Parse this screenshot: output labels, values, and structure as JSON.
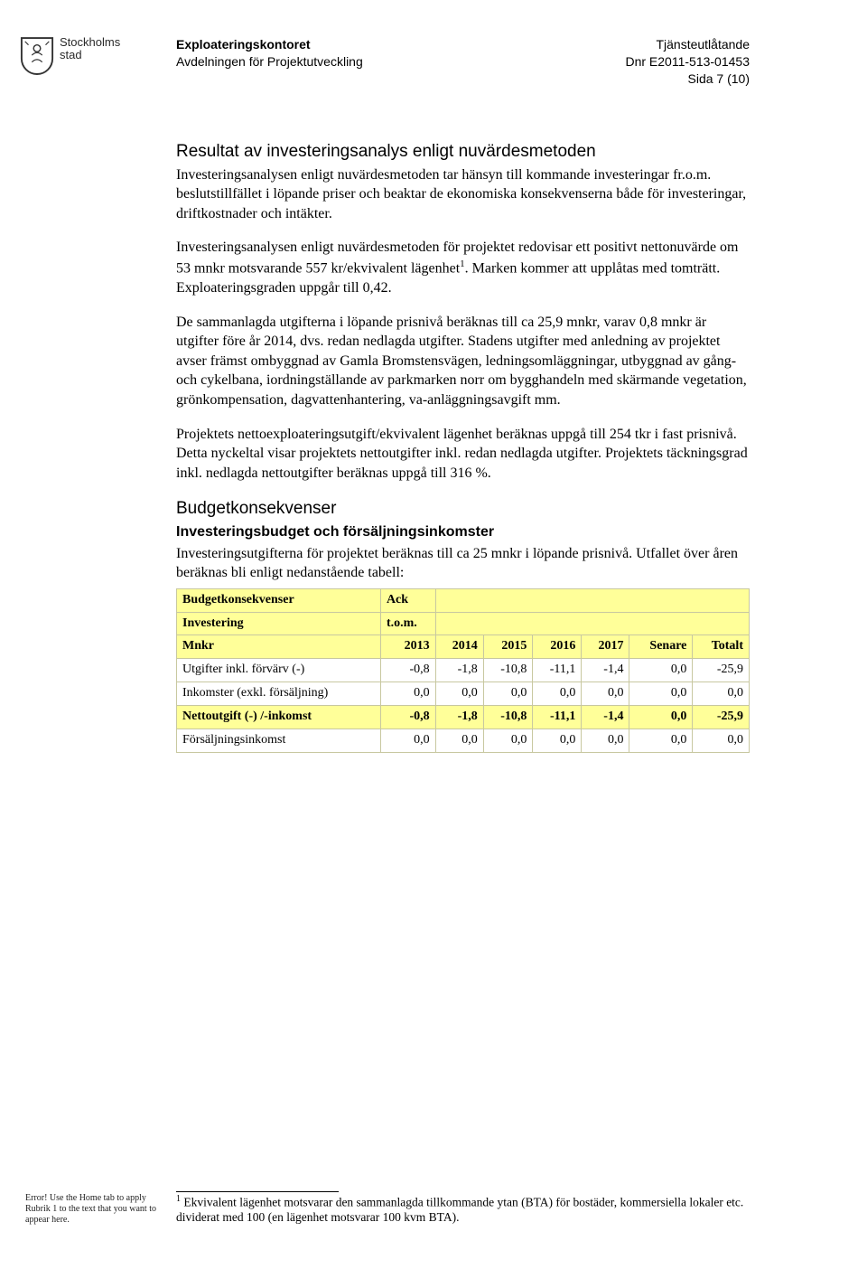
{
  "header": {
    "org": "Exploateringskontoret",
    "dept": "Avdelningen för Projektutveckling",
    "doc_type": "Tjänsteutlåtande",
    "dnr": "Dnr E2011-513-01453",
    "page": "Sida 7 (10)",
    "city_line1": "Stockholms",
    "city_line2": "stad"
  },
  "section1": {
    "title": "Resultat av investeringsanalys enligt nuvärdesmetoden",
    "p1": "Investeringsanalysen enligt nuvärdesmetoden tar hänsyn till kommande investeringar fr.o.m. beslutstillfället i löpande priser och beaktar de ekonomiska konsekvenserna både för investeringar, driftkostnader och intäkter.",
    "p2a": "Investeringsanalysen enligt nuvärdesmetoden för projektet redovisar ett positivt nettonuvärde om 53 mnkr motsvarande 557 kr/ekvivalent lägenhet",
    "p2b": ". Marken kommer att upplåtas med tomträtt. Exploateringsgraden uppgår till 0,42.",
    "p3": "De sammanlagda utgifterna i löpande prisnivå beräknas till ca 25,9 mnkr, varav 0,8 mnkr är utgifter före år 2014, dvs. redan nedlagda utgifter. Stadens utgifter med anledning av projektet avser främst ombyggnad av Gamla Bromstensvägen, ledningsomläggningar, utbyggnad av gång- och cykelbana, iordningställande av parkmarken norr om bygghandeln med skärmande vegetation, grönkompensation, dagvattenhantering, va-anläggningsavgift mm.",
    "p4": "Projektets nettoexploateringsutgift/ekvivalent lägenhet beräknas uppgå till 254 tkr i fast prisnivå. Detta nyckeltal visar projektets nettoutgifter inkl. redan nedlagda utgifter. Projektets täckningsgrad inkl. nedlagda nettoutgifter beräknas uppgå till 316 %."
  },
  "section2": {
    "title": "Budgetkonsekvenser",
    "subtitle": "Investeringsbudget och försäljningsinkomster",
    "p1": "Investeringsutgifterna för projektet beräknas till ca 25 mnkr i löpande prisnivå. Utfallet över åren beräknas bli enligt nedanstående tabell:"
  },
  "table": {
    "h1": "Budgetkonsekvenser",
    "h1b": "Ack",
    "h2": "Investering",
    "h2b": "t.o.m.",
    "h3": "Mnkr",
    "cols": [
      "2013",
      "2014",
      "2015",
      "2016",
      "2017",
      "Senare",
      "Totalt"
    ],
    "rows": [
      {
        "label": "Utgifter inkl. förvärv (-)",
        "v": [
          "-0,8",
          "-1,8",
          "-10,8",
          "-11,1",
          "-1,4",
          "0,0",
          "-25,9"
        ],
        "hl": false
      },
      {
        "label": "Inkomster (exkl. försäljning)",
        "v": [
          "0,0",
          "0,0",
          "0,0",
          "0,0",
          "0,0",
          "0,0",
          "0,0"
        ],
        "hl": false
      },
      {
        "label": "Nettoutgift (-) /-inkomst",
        "v": [
          "-0,8",
          "-1,8",
          "-10,8",
          "-11,1",
          "-1,4",
          "0,0",
          "-25,9"
        ],
        "hl": true
      },
      {
        "label": "Försäljningsinkomst",
        "v": [
          "0,0",
          "0,0",
          "0,0",
          "0,0",
          "0,0",
          "0,0",
          "0,0"
        ],
        "hl": false
      }
    ]
  },
  "footnote": {
    "marker": "1",
    "text": " Ekvivalent lägenhet motsvarar den sammanlagda tillkommande ytan (BTA) för bostäder, kommersiella lokaler etc. dividerat med 100 (en lägenhet motsvarar 100 kvm BTA)."
  },
  "page_field": "Error! Use the Home tab to apply Rubrik 1 to the text that you want to appear here."
}
